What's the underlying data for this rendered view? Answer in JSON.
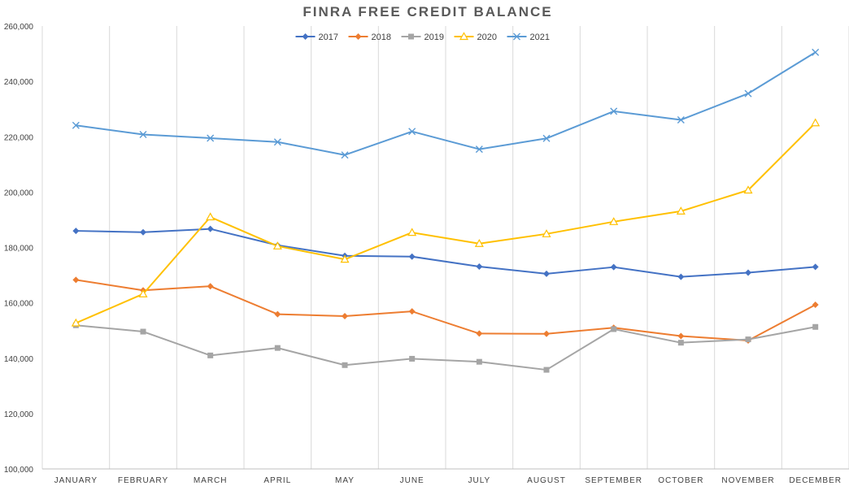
{
  "chart_data": {
    "type": "line",
    "title": "FINRA FREE CREDIT BALANCE",
    "xlabel": "",
    "ylabel": "",
    "categories": [
      "JANUARY",
      "FEBRUARY",
      "MARCH",
      "APRIL",
      "MAY",
      "JUNE",
      "JULY",
      "AUGUST",
      "SEPTEMBER",
      "OCTOBER",
      "NOVEMBER",
      "DECEMBER"
    ],
    "ylim": [
      100000,
      260000
    ],
    "yticks": [
      100000,
      120000,
      140000,
      160000,
      180000,
      200000,
      220000,
      240000,
      260000
    ],
    "ytick_labels": [
      "100,000",
      "120,000",
      "140,000",
      "160,000",
      "180,000",
      "200,000",
      "220,000",
      "240,000",
      "260,000"
    ],
    "grid": "vertical",
    "legend_position": "top",
    "series": [
      {
        "name": "2017",
        "color": "#4472C4",
        "marker": "diamond",
        "values": [
          186000,
          185500,
          186700,
          180800,
          177000,
          176700,
          173100,
          170500,
          172900,
          169400,
          170900,
          173000
        ]
      },
      {
        "name": "2018",
        "color": "#ED7D31",
        "marker": "diamond",
        "values": [
          168300,
          164500,
          166000,
          155900,
          155200,
          156900,
          148900,
          148800,
          151000,
          148000,
          146400,
          159300
        ]
      },
      {
        "name": "2019",
        "color": "#A5A5A5",
        "marker": "square",
        "values": [
          151900,
          149600,
          141000,
          143700,
          137500,
          139800,
          138700,
          135800,
          150500,
          145600,
          146800,
          151300
        ]
      },
      {
        "name": "2020",
        "color": "#FFC000",
        "marker": "triangle",
        "values": [
          152700,
          163200,
          191000,
          180500,
          175700,
          185400,
          181400,
          184900,
          189300,
          193100,
          200700,
          225000
        ]
      },
      {
        "name": "2021",
        "color": "#5B9BD5",
        "marker": "x",
        "values": [
          224100,
          220800,
          219500,
          218100,
          213400,
          221900,
          215500,
          219400,
          229200,
          226100,
          235600,
          250500
        ]
      }
    ]
  }
}
